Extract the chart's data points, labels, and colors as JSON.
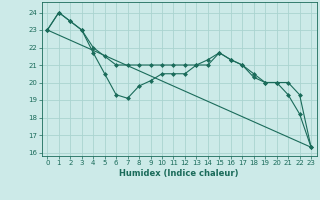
{
  "xlabel": "Humidex (Indice chaleur)",
  "background_color": "#cceae8",
  "grid_color": "#aad4d0",
  "line_color": "#1a6b5a",
  "xlim": [
    -0.5,
    23.5
  ],
  "ylim": [
    15.8,
    24.6
  ],
  "yticks": [
    16,
    17,
    18,
    19,
    20,
    21,
    22,
    23,
    24
  ],
  "xticks": [
    0,
    1,
    2,
    3,
    4,
    5,
    6,
    7,
    8,
    9,
    10,
    11,
    12,
    13,
    14,
    15,
    16,
    17,
    18,
    19,
    20,
    21,
    22,
    23
  ],
  "line1_x": [
    0,
    1,
    2,
    3,
    4,
    5,
    6,
    7,
    8,
    9,
    10,
    11,
    12,
    13,
    14,
    15,
    16,
    17,
    18,
    19,
    20,
    21,
    22,
    23
  ],
  "line1_y": [
    23,
    24,
    23.5,
    23,
    21.7,
    20.5,
    19.3,
    19.1,
    19.8,
    20.1,
    20.5,
    20.5,
    20.5,
    21,
    21.3,
    21.7,
    21.3,
    21,
    20.3,
    20,
    20,
    19.3,
    18.2,
    16.3
  ],
  "line2_x": [
    0,
    1,
    2,
    3,
    4,
    5,
    6,
    7,
    8,
    9,
    10,
    11,
    12,
    13,
    14,
    15,
    16,
    17,
    18,
    19,
    20,
    21,
    22,
    23
  ],
  "line2_y": [
    23,
    24,
    23.5,
    23,
    22,
    21.5,
    21,
    21,
    21,
    21,
    21,
    21,
    21,
    21,
    21,
    21.7,
    21.3,
    21,
    20.5,
    20,
    20,
    20,
    19.3,
    16.3
  ],
  "line3_x": [
    0,
    23
  ],
  "line3_y": [
    23,
    16.3
  ]
}
